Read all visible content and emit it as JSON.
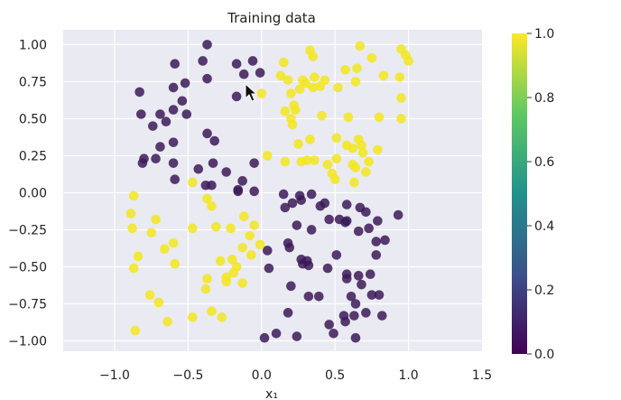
{
  "chart_data": {
    "type": "scatter",
    "title": "Training data",
    "xlabel": "x₁",
    "ylabel": "",
    "xlim": [
      -1.35,
      1.5
    ],
    "ylim": [
      -1.07,
      1.1
    ],
    "x_ticks": [
      -1.0,
      -0.5,
      0.0,
      0.5,
      1.0,
      1.5
    ],
    "x_tick_labels": [
      "−1.0",
      "−0.5",
      "0.0",
      "0.5",
      "1.0",
      "1.5"
    ],
    "y_ticks": [
      1.0,
      0.75,
      0.5,
      0.25,
      0.0,
      -0.25,
      -0.5,
      -0.75,
      -1.0
    ],
    "y_tick_labels": [
      "1.00",
      "0.75",
      "0.50",
      "0.25",
      "0.00",
      "−0.25",
      "−0.50",
      "−0.75",
      "−1.00"
    ],
    "grid": true,
    "plot_background": "#eaeaf2",
    "colormap": "viridis",
    "colorbar": {
      "range": [
        0.0,
        1.0
      ],
      "ticks": [
        0.0,
        0.2,
        0.4,
        0.6,
        0.8,
        1.0
      ],
      "tick_labels": [
        "0.0",
        "0.2",
        "0.4",
        "0.6",
        "0.8",
        "1.0"
      ],
      "stops": [
        "#440154",
        "#3b528b",
        "#21918c",
        "#5ec962",
        "#fde725"
      ]
    },
    "class_colors": {
      "0": "#3b1a58",
      "1": "#f2e61f"
    },
    "points": [
      [
        -0.37,
        1.0,
        0
      ],
      [
        -0.59,
        0.87,
        0
      ],
      [
        -0.4,
        0.89,
        0
      ],
      [
        -0.17,
        0.87,
        0
      ],
      [
        -0.06,
        0.89,
        0
      ],
      [
        -0.01,
        0.81,
        0
      ],
      [
        -0.12,
        0.8,
        0
      ],
      [
        -0.37,
        0.77,
        0
      ],
      [
        -0.52,
        0.74,
        0
      ],
      [
        -0.6,
        0.71,
        0
      ],
      [
        -0.83,
        0.68,
        0
      ],
      [
        -0.17,
        0.65,
        0
      ],
      [
        -0.54,
        0.62,
        0
      ],
      [
        -0.6,
        0.56,
        0
      ],
      [
        -0.82,
        0.53,
        0
      ],
      [
        -0.69,
        0.53,
        0
      ],
      [
        -0.51,
        0.53,
        0
      ],
      [
        -0.65,
        0.48,
        0
      ],
      [
        -0.74,
        0.45,
        0
      ],
      [
        -0.37,
        0.4,
        0
      ],
      [
        -0.6,
        0.34,
        0
      ],
      [
        -0.69,
        0.31,
        0
      ],
      [
        -0.32,
        0.35,
        0
      ],
      [
        -0.8,
        0.23,
        0
      ],
      [
        -0.72,
        0.23,
        0
      ],
      [
        -0.6,
        0.2,
        0
      ],
      [
        -0.33,
        0.2,
        0
      ],
      [
        -0.43,
        0.16,
        0
      ],
      [
        -0.24,
        0.14,
        0
      ],
      [
        -0.05,
        0.2,
        0
      ],
      [
        -0.81,
        0.2,
        0
      ],
      [
        -0.59,
        0.09,
        0
      ],
      [
        -0.38,
        0.05,
        0
      ],
      [
        -0.34,
        0.05,
        0
      ],
      [
        -0.13,
        0.08,
        0
      ],
      [
        -0.16,
        0.02,
        0
      ],
      [
        -0.16,
        0.01,
        0
      ],
      [
        -0.05,
        0.01,
        0
      ],
      [
        0.15,
        -0.01,
        0
      ],
      [
        0.26,
        -0.02,
        0
      ],
      [
        0.34,
        -0.01,
        0
      ],
      [
        0.27,
        -0.05,
        0
      ],
      [
        0.16,
        -0.1,
        0
      ],
      [
        0.21,
        -0.07,
        0
      ],
      [
        0.43,
        -0.07,
        0
      ],
      [
        0.4,
        -0.09,
        0
      ],
      [
        0.58,
        -0.08,
        0
      ],
      [
        0.67,
        -0.1,
        0
      ],
      [
        0.71,
        -0.13,
        0
      ],
      [
        0.93,
        -0.15,
        0
      ],
      [
        0.46,
        -0.18,
        0
      ],
      [
        0.53,
        -0.18,
        0
      ],
      [
        0.57,
        -0.2,
        0
      ],
      [
        0.58,
        -0.19,
        0
      ],
      [
        0.79,
        -0.19,
        0
      ],
      [
        0.24,
        -0.22,
        0
      ],
      [
        0.34,
        -0.25,
        0
      ],
      [
        0.66,
        -0.26,
        0
      ],
      [
        0.73,
        -0.24,
        0
      ],
      [
        0.84,
        -0.32,
        0
      ],
      [
        0.78,
        -0.33,
        0
      ],
      [
        0.18,
        -0.34,
        0
      ],
      [
        0.19,
        -0.37,
        0
      ],
      [
        0.04,
        -0.39,
        0
      ],
      [
        0.27,
        -0.45,
        0
      ],
      [
        0.31,
        -0.46,
        0
      ],
      [
        0.28,
        -0.48,
        0
      ],
      [
        0.32,
        -0.49,
        0
      ],
      [
        0.51,
        -0.42,
        0
      ],
      [
        0.78,
        -0.42,
        0
      ],
      [
        0.05,
        -0.51,
        0
      ],
      [
        0.45,
        -0.51,
        0
      ],
      [
        0.58,
        -0.55,
        0
      ],
      [
        0.66,
        -0.56,
        0
      ],
      [
        0.74,
        -0.55,
        0
      ],
      [
        0.58,
        -0.58,
        0
      ],
      [
        0.2,
        -0.63,
        0
      ],
      [
        0.32,
        -0.7,
        0
      ],
      [
        0.39,
        -0.7,
        0
      ],
      [
        0.61,
        -0.7,
        0
      ],
      [
        0.68,
        -0.62,
        0
      ],
      [
        0.75,
        -0.69,
        0
      ],
      [
        0.8,
        -0.69,
        0
      ],
      [
        0.64,
        -0.75,
        0
      ],
      [
        0.18,
        -0.81,
        0
      ],
      [
        0.56,
        -0.83,
        0
      ],
      [
        0.63,
        -0.83,
        0
      ],
      [
        0.57,
        -0.87,
        0
      ],
      [
        0.71,
        -0.81,
        0
      ],
      [
        0.82,
        -0.83,
        0
      ],
      [
        0.46,
        -0.89,
        0
      ],
      [
        0.1,
        -0.95,
        0
      ],
      [
        0.24,
        -0.97,
        0
      ],
      [
        0.49,
        -0.95,
        0
      ],
      [
        0.64,
        -0.98,
        0
      ],
      [
        0.02,
        -0.98,
        0
      ],
      [
        0.67,
        0.99,
        1
      ],
      [
        0.95,
        0.97,
        1
      ],
      [
        0.33,
        0.96,
        1
      ],
      [
        0.35,
        0.92,
        1
      ],
      [
        0.75,
        0.91,
        1
      ],
      [
        0.98,
        0.93,
        1
      ],
      [
        1.0,
        0.89,
        1
      ],
      [
        0.15,
        0.88,
        1
      ],
      [
        0.57,
        0.83,
        1
      ],
      [
        0.65,
        0.84,
        1
      ],
      [
        0.83,
        0.79,
        1
      ],
      [
        0.94,
        0.78,
        1
      ],
      [
        0.13,
        0.79,
        1
      ],
      [
        0.18,
        0.76,
        1
      ],
      [
        0.28,
        0.76,
        1
      ],
      [
        0.36,
        0.78,
        1
      ],
      [
        0.4,
        0.72,
        1
      ],
      [
        0.35,
        0.71,
        1
      ],
      [
        0.43,
        0.76,
        1
      ],
      [
        0.52,
        0.71,
        1
      ],
      [
        0.64,
        0.75,
        1
      ],
      [
        0.3,
        0.74,
        1
      ],
      [
        0.26,
        0.7,
        1
      ],
      [
        0.0,
        0.67,
        1
      ],
      [
        0.2,
        0.67,
        1
      ],
      [
        0.95,
        0.64,
        1
      ],
      [
        0.22,
        0.59,
        1
      ],
      [
        0.23,
        0.56,
        1
      ],
      [
        0.16,
        0.55,
        1
      ],
      [
        0.41,
        0.52,
        1
      ],
      [
        0.59,
        0.51,
        1
      ],
      [
        0.8,
        0.51,
        1
      ],
      [
        0.95,
        0.5,
        1
      ],
      [
        0.2,
        0.5,
        1
      ],
      [
        0.21,
        0.46,
        1
      ],
      [
        0.33,
        0.36,
        1
      ],
      [
        0.51,
        0.37,
        1
      ],
      [
        0.66,
        0.36,
        1
      ],
      [
        0.25,
        0.33,
        1
      ],
      [
        0.58,
        0.32,
        1
      ],
      [
        0.62,
        0.3,
        1
      ],
      [
        0.68,
        0.32,
        1
      ],
      [
        0.69,
        0.27,
        1
      ],
      [
        0.79,
        0.29,
        1
      ],
      [
        0.04,
        0.25,
        1
      ],
      [
        0.16,
        0.21,
        1
      ],
      [
        0.27,
        0.21,
        1
      ],
      [
        0.31,
        0.22,
        1
      ],
      [
        0.45,
        0.19,
        1
      ],
      [
        0.36,
        0.22,
        1
      ],
      [
        0.51,
        0.23,
        1
      ],
      [
        0.62,
        0.19,
        1
      ],
      [
        0.64,
        0.17,
        1
      ],
      [
        0.73,
        0.21,
        1
      ],
      [
        0.71,
        0.14,
        1
      ],
      [
        -0.47,
        0.07,
        1
      ],
      [
        0.48,
        0.13,
        1
      ],
      [
        0.5,
        0.09,
        1
      ],
      [
        0.63,
        0.07,
        1
      ],
      [
        -0.87,
        -0.02,
        1
      ],
      [
        -0.37,
        -0.04,
        1
      ],
      [
        -0.34,
        -0.09,
        1
      ],
      [
        -0.89,
        -0.14,
        1
      ],
      [
        -0.12,
        -0.16,
        1
      ],
      [
        -0.05,
        -0.22,
        1
      ],
      [
        -0.72,
        -0.18,
        1
      ],
      [
        -0.88,
        -0.24,
        1
      ],
      [
        -0.31,
        -0.23,
        1
      ],
      [
        -0.21,
        -0.24,
        1
      ],
      [
        -0.6,
        -0.34,
        1
      ],
      [
        -0.47,
        -0.24,
        1
      ],
      [
        -0.75,
        -0.27,
        1
      ],
      [
        -0.08,
        -0.29,
        1
      ],
      [
        -0.13,
        -0.37,
        1
      ],
      [
        -0.01,
        -0.35,
        1
      ],
      [
        -0.66,
        -0.38,
        1
      ],
      [
        -0.07,
        -0.42,
        1
      ],
      [
        -0.59,
        -0.48,
        1
      ],
      [
        -0.28,
        -0.46,
        1
      ],
      [
        -0.2,
        -0.45,
        1
      ],
      [
        -0.84,
        -0.43,
        1
      ],
      [
        -0.87,
        -0.51,
        1
      ],
      [
        -0.17,
        -0.5,
        1
      ],
      [
        -0.24,
        -0.57,
        1
      ],
      [
        -0.19,
        -0.54,
        1
      ],
      [
        -0.37,
        -0.58,
        1
      ],
      [
        -0.24,
        -0.6,
        1
      ],
      [
        -0.13,
        -0.61,
        1
      ],
      [
        -0.38,
        -0.65,
        1
      ],
      [
        -0.76,
        -0.69,
        1
      ],
      [
        -0.7,
        -0.74,
        1
      ],
      [
        -0.34,
        -0.8,
        1
      ],
      [
        -0.27,
        -0.84,
        1
      ],
      [
        -0.47,
        -0.84,
        1
      ],
      [
        -0.64,
        -0.87,
        1
      ],
      [
        -0.86,
        -0.93,
        1
      ]
    ]
  }
}
